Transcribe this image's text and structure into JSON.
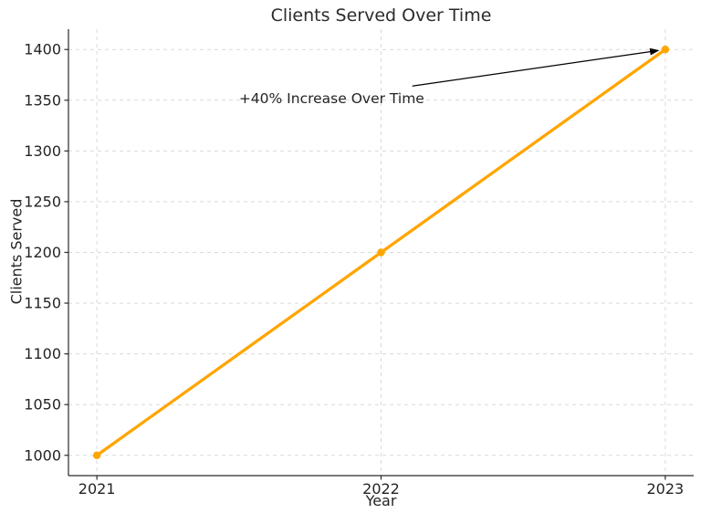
{
  "chart_data": {
    "type": "line",
    "title": "Clients Served Over Time",
    "xlabel": "Year",
    "ylabel": "Clients Served",
    "x": [
      2021,
      2022,
      2023
    ],
    "series": [
      {
        "name": "Clients Served",
        "values": [
          1000,
          1200,
          1400
        ],
        "color": "#FFA500",
        "marker": "circle",
        "line_width": 3.3,
        "marker_radius": 4.2
      }
    ],
    "xticks": [
      "2021",
      "2022",
      "2023"
    ],
    "xtick_values": [
      2021,
      2022,
      2023
    ],
    "yticks": [
      "1000",
      "1050",
      "1100",
      "1150",
      "1200",
      "1250",
      "1300",
      "1350",
      "1400"
    ],
    "ytick_values": [
      1000,
      1050,
      1100,
      1150,
      1200,
      1250,
      1300,
      1350,
      1400
    ],
    "xlim": [
      2020.9,
      2023.1
    ],
    "ylim": [
      980,
      1420
    ],
    "grid": true,
    "grid_line_style": "dashed",
    "legend_position": "none",
    "annotation": {
      "text": "+40% Increase Over Time",
      "target_xy": [
        2023,
        1400
      ],
      "text_xy": [
        2021.5,
        1352
      ],
      "arrow_start_xy": [
        2022.11,
        1364
      ],
      "arrow_color": "#000000"
    },
    "colors": {
      "line": "#FFA500",
      "grid": "#d9d9d9",
      "axis": "#2a2a2a",
      "text": "#242424",
      "background": "#ffffff"
    }
  }
}
